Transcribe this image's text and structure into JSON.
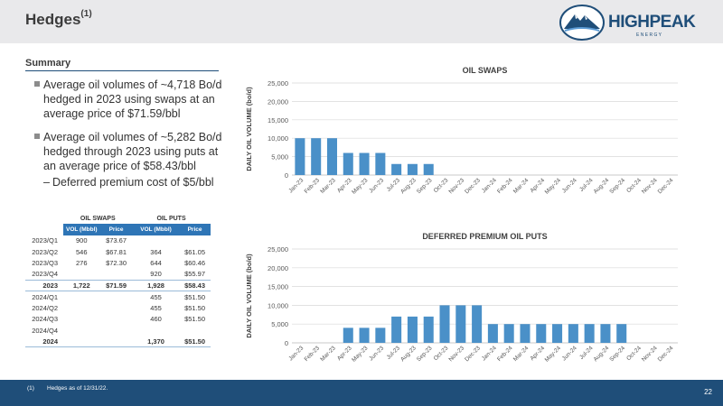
{
  "header": {
    "title": "Hedges",
    "title_superscript": "(1)",
    "logo_text": "HIGHPEAK",
    "logo_subtext": "E N E R G Y",
    "logo_color": "#1f4e79"
  },
  "summary": {
    "label": "Summary",
    "bullets": [
      "Average oil volumes of ~4,718 Bo/d hedged in 2023 using swaps at an average price of $71.59/bbl",
      "Average oil volumes of ~5,282 Bo/d hedged through 2023 using puts at an average price of $58.43/bbl"
    ],
    "subbullet": "Deferred premium cost of $5/bbl"
  },
  "table": {
    "group_headers": [
      "OIL SWAPS",
      "OIL PUTS"
    ],
    "column_headers": [
      "VOL (Mbbl)",
      "Price",
      "VOL (Mbbl)",
      "Price"
    ],
    "rows": [
      {
        "period": "2023/Q1",
        "swap_vol": "900",
        "swap_price": "$73.67",
        "put_vol": "",
        "put_price": ""
      },
      {
        "period": "2023/Q2",
        "swap_vol": "546",
        "swap_price": "$67.81",
        "put_vol": "364",
        "put_price": "$61.05"
      },
      {
        "period": "2023/Q3",
        "swap_vol": "276",
        "swap_price": "$72.30",
        "put_vol": "644",
        "put_price": "$60.46"
      },
      {
        "period": "2023/Q4",
        "swap_vol": "",
        "swap_price": "",
        "put_vol": "920",
        "put_price": "$55.97"
      },
      {
        "period": "2023",
        "swap_vol": "1,722",
        "swap_price": "$71.59",
        "put_vol": "1,928",
        "put_price": "$58.43"
      },
      {
        "period": "2024/Q1",
        "swap_vol": "",
        "swap_price": "",
        "put_vol": "455",
        "put_price": "$51.50"
      },
      {
        "period": "2024/Q2",
        "swap_vol": "",
        "swap_price": "",
        "put_vol": "455",
        "put_price": "$51.50"
      },
      {
        "period": "2024/Q3",
        "swap_vol": "",
        "swap_price": "",
        "put_vol": "460",
        "put_price": "$51.50"
      },
      {
        "period": "2024/Q4",
        "swap_vol": "",
        "swap_price": "",
        "put_vol": "",
        "put_price": ""
      },
      {
        "period": "2024",
        "swap_vol": "",
        "swap_price": "",
        "put_vol": "1,370",
        "put_price": "$51.50"
      }
    ],
    "header_color": "#2e75b6"
  },
  "chart_data": [
    {
      "type": "bar",
      "title": "OIL SWAPS",
      "ylabel": "DAILY OIL VOLUME (bo/d)",
      "xlabel": "",
      "ylim": [
        0,
        25000
      ],
      "yticks": [
        "0",
        "5,000",
        "10,000",
        "15,000",
        "20,000",
        "25,000"
      ],
      "categories": [
        "Jan-23",
        "Feb-23",
        "Mar-23",
        "Apr-23",
        "May-23",
        "Jun-23",
        "Jul-23",
        "Aug-23",
        "Sep-23",
        "Oct-23",
        "Nov-23",
        "Dec-23",
        "Jan-24",
        "Feb-24",
        "Mar-24",
        "Apr-24",
        "May-24",
        "Jun-24",
        "Jul-24",
        "Aug-24",
        "Sep-24",
        "Oct-24",
        "Nov-24",
        "Dec-24"
      ],
      "values": [
        10000,
        10000,
        10000,
        6000,
        6000,
        6000,
        3000,
        3000,
        3000,
        0,
        0,
        0,
        0,
        0,
        0,
        0,
        0,
        0,
        0,
        0,
        0,
        0,
        0,
        0
      ],
      "color": "#4a90c8",
      "grid": true
    },
    {
      "type": "bar",
      "title": "DEFERRED PREMIUM OIL PUTS",
      "ylabel": "DAILY OIL VOLUME (bo/d)",
      "xlabel": "",
      "ylim": [
        0,
        25000
      ],
      "yticks": [
        "0",
        "5,000",
        "10,000",
        "15,000",
        "20,000",
        "25,000"
      ],
      "categories": [
        "Jan-23",
        "Feb-23",
        "Mar-23",
        "Apr-23",
        "May-23",
        "Jun-23",
        "Jul-23",
        "Aug-23",
        "Sep-23",
        "Oct-23",
        "Nov-23",
        "Dec-23",
        "Jan-24",
        "Feb-24",
        "Mar-24",
        "Apr-24",
        "May-24",
        "Jun-24",
        "Jul-24",
        "Aug-24",
        "Sep-24",
        "Oct-24",
        "Nov-24",
        "Dec-24"
      ],
      "values": [
        0,
        0,
        0,
        4000,
        4000,
        4000,
        7000,
        7000,
        7000,
        10000,
        10000,
        10000,
        5000,
        5000,
        5000,
        5000,
        5000,
        5000,
        5000,
        5000,
        5000,
        0,
        0,
        0
      ],
      "color": "#4a90c8",
      "grid": true
    }
  ],
  "footer": {
    "footnote_marker": "(1)",
    "footnote_text": "Hedges as of 12/31/22.",
    "page_number": "22",
    "color": "#1f4e79"
  }
}
